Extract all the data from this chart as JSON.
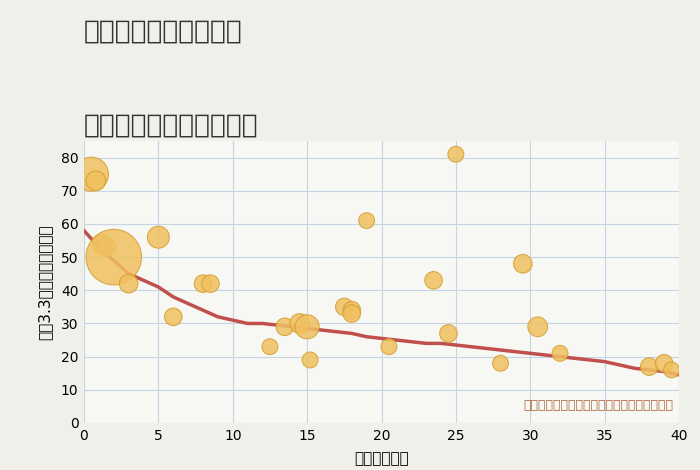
{
  "title_line1": "三重県松阪市高木町の",
  "title_line2": "築年数別中古戸建て価格",
  "xlabel": "築年数（年）",
  "ylabel": "坪（3.3㎡）単価（万円）",
  "annotation": "円の大きさは、取引のあった物件面積を示す",
  "background_color": "#f0f0eb",
  "plot_bg_color": "#f7f7f3",
  "grid_color": "#c5d5e5",
  "xlim": [
    0,
    40
  ],
  "ylim": [
    0,
    85
  ],
  "xticks": [
    0,
    5,
    10,
    15,
    20,
    25,
    30,
    35,
    40
  ],
  "yticks": [
    0,
    10,
    20,
    30,
    40,
    50,
    60,
    70,
    80
  ],
  "scatter_x": [
    0.5,
    0.8,
    1.2,
    1.5,
    2.0,
    3.0,
    5.0,
    6.0,
    8.0,
    8.5,
    12.5,
    13.5,
    14.5,
    15.0,
    15.2,
    17.5,
    18.0,
    18.0,
    19.0,
    20.5,
    23.5,
    24.5,
    25.0,
    28.0,
    29.5,
    30.5,
    32.0,
    38.0,
    39.0,
    39.5
  ],
  "scatter_y": [
    75,
    73,
    54,
    53,
    50,
    42,
    56,
    32,
    42,
    42,
    23,
    29,
    30,
    29,
    19,
    35,
    34,
    33,
    61,
    23,
    43,
    27,
    81,
    18,
    48,
    29,
    21,
    17,
    18,
    16
  ],
  "scatter_sizes": [
    600,
    200,
    180,
    180,
    1600,
    180,
    250,
    160,
    160,
    160,
    130,
    160,
    200,
    300,
    130,
    160,
    160,
    160,
    130,
    130,
    160,
    160,
    130,
    130,
    180,
    200,
    130,
    160,
    160,
    130
  ],
  "scatter_color": "#f0c060",
  "scatter_alpha": 0.85,
  "scatter_edge_color": "#d4a030",
  "line_x": [
    0,
    1,
    2,
    3,
    4,
    5,
    6,
    7,
    8,
    9,
    10,
    11,
    12,
    13,
    14,
    15,
    16,
    17,
    18,
    19,
    20,
    21,
    22,
    23,
    24,
    25,
    26,
    27,
    28,
    29,
    30,
    31,
    32,
    33,
    34,
    35,
    36,
    37,
    38,
    39,
    40
  ],
  "line_y": [
    58,
    53,
    49,
    45,
    43,
    41,
    38,
    36,
    34,
    32,
    31,
    30,
    30,
    29.5,
    29,
    28.5,
    28,
    27.5,
    27,
    26,
    25.5,
    25,
    24.5,
    24,
    24,
    23.5,
    23,
    22.5,
    22,
    21.5,
    21,
    20.5,
    20,
    19.5,
    19,
    18.5,
    17.5,
    16.5,
    16,
    15.5,
    14.5
  ],
  "line_color": "#c0504d",
  "line_width": 2.5,
  "title_fontsize": 19,
  "axis_fontsize": 11,
  "tick_fontsize": 10,
  "annotation_fontsize": 9,
  "annotation_color": "#b06840",
  "title_color": "#333333"
}
